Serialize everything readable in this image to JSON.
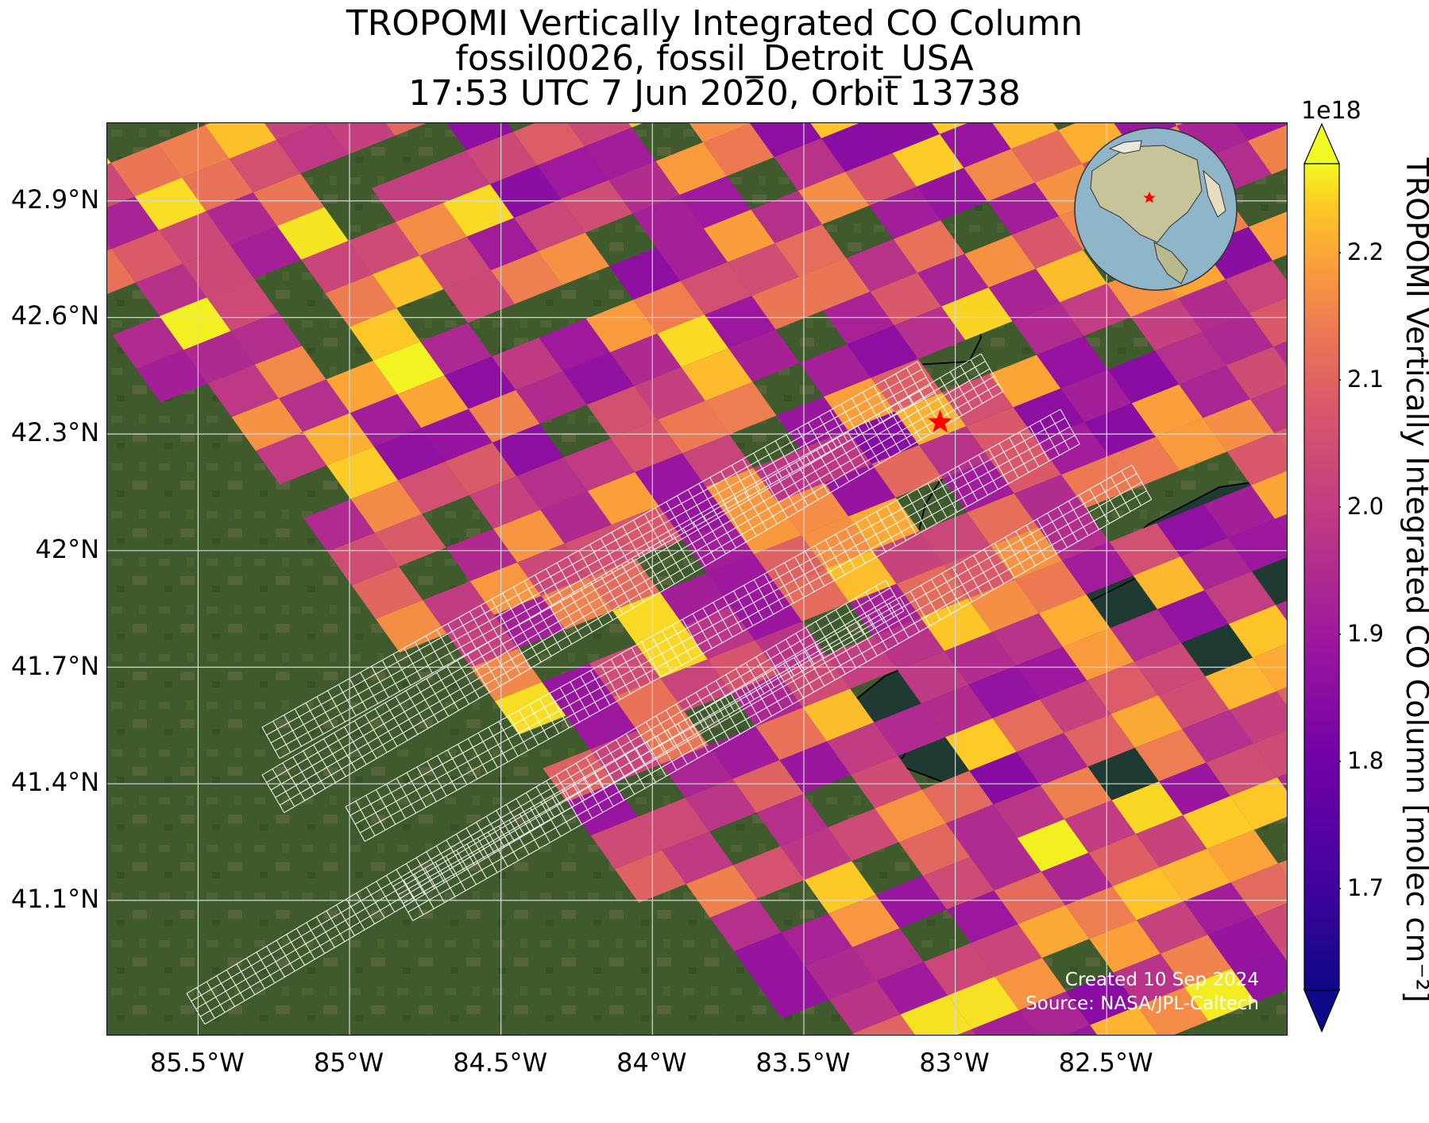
{
  "title": {
    "line1": "TROPOMI Vertically Integrated CO Column",
    "line2": "fossil0026, fossil_Detroit_USA",
    "line3": "17:53 UTC 7 Jun 2020, Orbit 13738"
  },
  "map": {
    "lon_range": [
      -85.8,
      -81.9
    ],
    "lat_range": [
      40.75,
      43.1
    ],
    "lat_ticks": [
      {
        "value": 42.9,
        "label": "42.9°N"
      },
      {
        "value": 42.6,
        "label": "42.6°N"
      },
      {
        "value": 42.3,
        "label": "42.3°N"
      },
      {
        "value": 42.0,
        "label": "42°N"
      },
      {
        "value": 41.7,
        "label": "41.7°N"
      },
      {
        "value": 41.4,
        "label": "41.4°N"
      },
      {
        "value": 41.1,
        "label": "41.1°N"
      }
    ],
    "lon_ticks": [
      {
        "value": -85.5,
        "label": "85.5°W"
      },
      {
        "value": -85.0,
        "label": "85°W"
      },
      {
        "value": -84.5,
        "label": "84.5°W"
      },
      {
        "value": -84.0,
        "label": "84°W"
      },
      {
        "value": -83.5,
        "label": "83.5°W"
      },
      {
        "value": -83.0,
        "label": "83°W"
      },
      {
        "value": -82.5,
        "label": "82.5°W"
      }
    ],
    "target_site": {
      "name": "fossil_Detroit_USA",
      "lon": -83.05,
      "lat": 42.33,
      "marker": "red-star",
      "color": "#ff0000"
    },
    "credit_line1": "Created 10 Sep 2024",
    "credit_line2": "Source: NASA/JPL-Caltech",
    "colors": {
      "land": "#3f5a2c",
      "lake": "#1f3a33",
      "grid": "#d8d8d8",
      "footprint_grid": "#ffffff",
      "coastline": "#000000"
    }
  },
  "colorbar": {
    "exponent_label": "1e18",
    "label": "TROPOMI Vertically Integrated CO Column [molec cm⁻²]",
    "range": [
      1.62,
      2.27
    ],
    "extend": "both",
    "colormap": "plasma",
    "ticks": [
      {
        "value": 1.7,
        "label": "1.7"
      },
      {
        "value": 1.8,
        "label": "1.8"
      },
      {
        "value": 1.9,
        "label": "1.9"
      },
      {
        "value": 2.0,
        "label": "2.0"
      },
      {
        "value": 2.1,
        "label": "2.1"
      },
      {
        "value": 2.2,
        "label": "2.2"
      }
    ]
  },
  "inset_globe": {
    "center_lon": -90,
    "center_lat": 40,
    "marker": "red-star"
  }
}
